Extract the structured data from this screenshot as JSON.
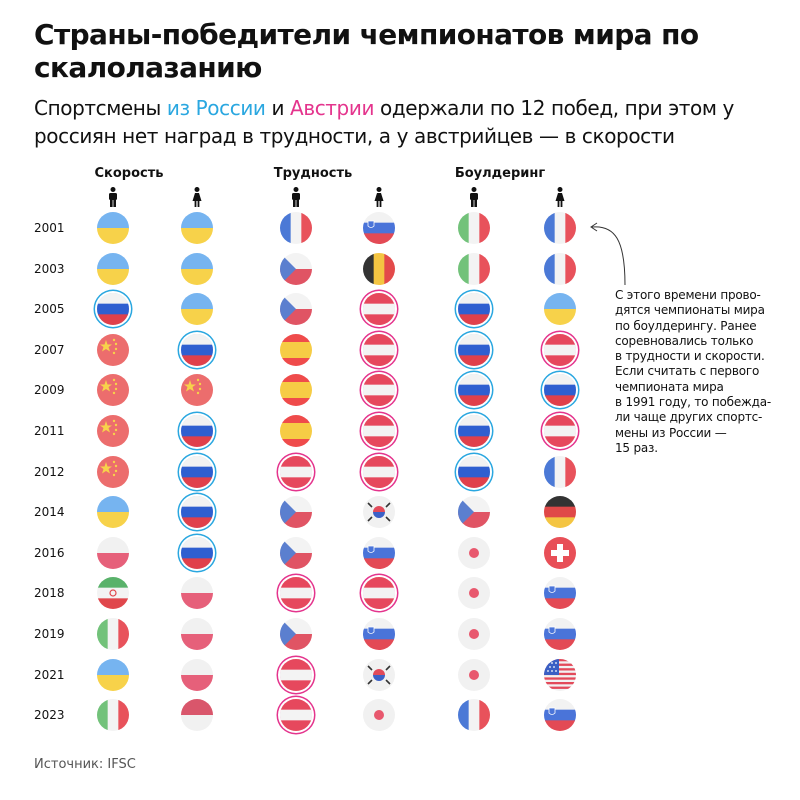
{
  "title": "Страны-победители чемпионатов мира по скалолазанию",
  "subtitle": {
    "part1": "Спортсмены ",
    "russia": "из России",
    "part2": " и ",
    "austria": "Австрии",
    "part3": " одержали по 12 побед, при этом у россиян нет наград в трудности, а у австрийцев — в скорости"
  },
  "colors": {
    "russia_ring": "#2aa7e0",
    "austria_ring": "#e4348d"
  },
  "note": "С этого времени прово-\nдятся чемпионаты мира\nпо боулдерингу. Ранее\nсоревновались только\nв трудности и скорости.\nЕсли считать с первого\nчемпионата мира\nв 1991 году, то побежда-\nли чаще других спортс-\nмены из России —\n15 раз.",
  "source": "Источник: IFSC",
  "chart_data": {
    "type": "table",
    "categories": [
      "Скорость",
      "Трудность",
      "Боулдеринг"
    ],
    "gender_icons": [
      "male-icon",
      "female-icon"
    ],
    "columns": [
      "male",
      "female"
    ],
    "years": [
      "2001",
      "2003",
      "2005",
      "2007",
      "2009",
      "2011",
      "2012",
      "2014",
      "2016",
      "2018",
      "2019",
      "2021",
      "2023"
    ],
    "winners": {
      "speed_male": [
        "ua",
        "ua",
        "ru",
        "cn",
        "cn",
        "cn",
        "cn",
        "ua",
        "pl",
        "ir",
        "it",
        "ua",
        "it"
      ],
      "speed_female": [
        "ua",
        "ua",
        "ua",
        "ru",
        "cn",
        "ru",
        "ru",
        "ru",
        "ru",
        "pl",
        "pl",
        "pl",
        "id"
      ],
      "lead_male": [
        "fr",
        "cz",
        "cz",
        "es",
        "es",
        "es",
        "at",
        "cz",
        "cz",
        "at",
        "cz",
        "at",
        "at"
      ],
      "lead_female": [
        "si",
        "be",
        "at",
        "at",
        "at",
        "at",
        "at",
        "kr",
        "si",
        "at",
        "si",
        "kr",
        "jp"
      ],
      "boulder_male": [
        "it",
        "it",
        "ru",
        "ru",
        "ru",
        "ru",
        "ru",
        "cz",
        "jp",
        "jp",
        "jp",
        "jp",
        "fr"
      ],
      "boulder_female": [
        "fr",
        "fr",
        "ua",
        "at",
        "ru",
        "at",
        "fr",
        "de",
        "ch",
        "si",
        "si",
        "us",
        "si"
      ]
    }
  }
}
